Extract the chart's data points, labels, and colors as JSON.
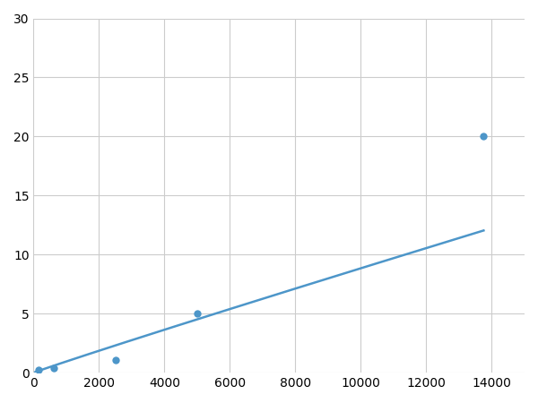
{
  "x_data": [
    156,
    625,
    2500,
    5000,
    13750
  ],
  "y_data": [
    0.27,
    0.4,
    1.1,
    5.0,
    20.0
  ],
  "line_color": "#4d96c9",
  "marker_color": "#4d96c9",
  "marker_size": 6,
  "line_width": 1.8,
  "xlim": [
    0,
    15000
  ],
  "ylim": [
    0,
    30
  ],
  "xticks": [
    0,
    2000,
    4000,
    6000,
    8000,
    10000,
    12000,
    14000
  ],
  "yticks": [
    0,
    5,
    10,
    15,
    20,
    25,
    30
  ],
  "grid_color": "#cccccc",
  "background_color": "#ffffff",
  "tick_label_fontsize": 10
}
